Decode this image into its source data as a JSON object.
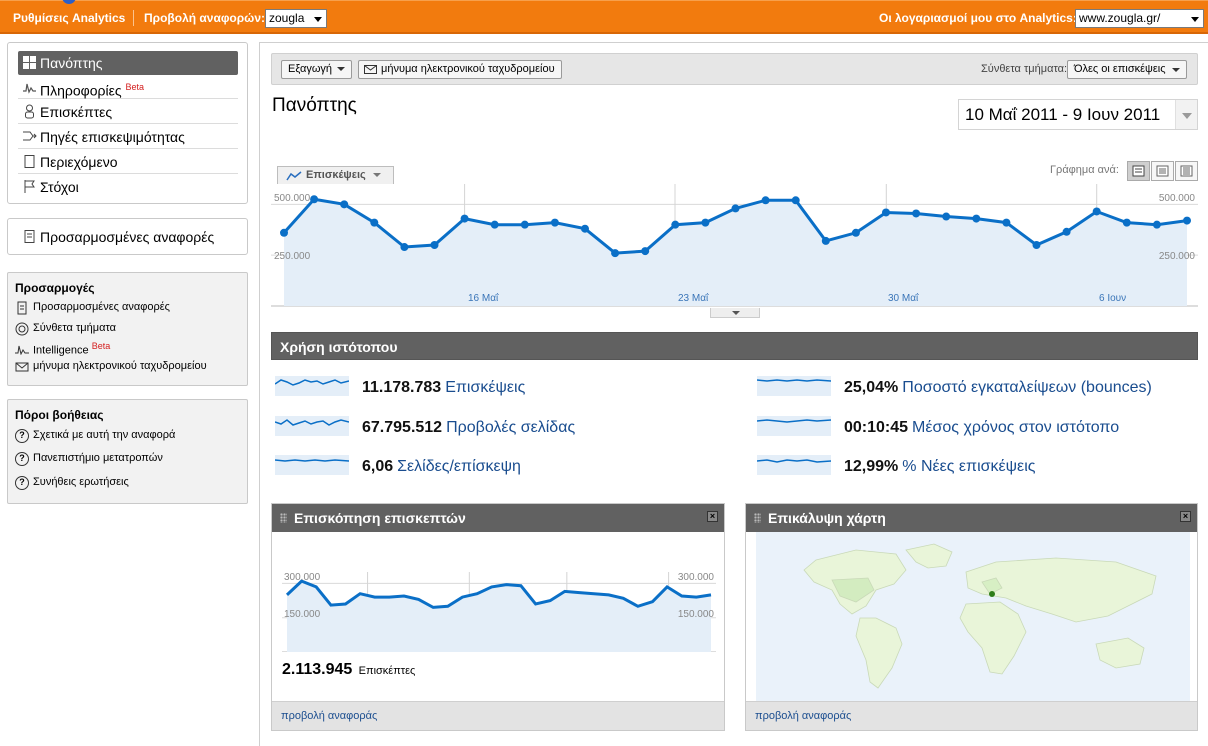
{
  "topbar": {
    "settings_link": "Ρυθμίσεις Analytics",
    "view_reports_label": "Προβολή αναφορών:",
    "profile_select": "zougla",
    "accounts_label": "Οι λογαριασμοί μου στο Analytics:",
    "account_select": "www.zougla.gr/"
  },
  "sidebar": {
    "nav": [
      {
        "label": "Πανόπτης",
        "icon": "dashboard-icon"
      },
      {
        "label": "Πληροφορίες",
        "badge": "Beta",
        "icon": "intelligence-icon"
      },
      {
        "label": "Επισκέπτες",
        "icon": "visitor-icon"
      },
      {
        "label": "Πηγές επισκεψιμότητας",
        "icon": "traffic-sources-icon"
      },
      {
        "label": "Περιεχόμενο",
        "icon": "content-icon"
      },
      {
        "label": "Στόχοι",
        "icon": "flag-icon"
      }
    ],
    "custom_reports": "Προσαρμοσμένες αναφορές",
    "customizations": {
      "title": "Προσαρμογές",
      "items": [
        {
          "label": "Προσαρμοσμένες αναφορές",
          "icon": "report-icon"
        },
        {
          "label": "Σύνθετα τμήματα",
          "icon": "segments-icon"
        },
        {
          "label": "Intelligence",
          "badge": "Beta",
          "icon": "intelligence-icon"
        },
        {
          "label": "μήνυμα ηλεκτρονικού ταχυδρομείου",
          "icon": "email-icon"
        }
      ]
    },
    "help": {
      "title": "Πόροι βοήθειας",
      "items": [
        {
          "label": "Σχετικά με αυτή την αναφορά",
          "icon": "help-icon"
        },
        {
          "label": "Πανεπιστήμιο μετατροπών",
          "icon": "help-icon"
        },
        {
          "label": "Συνήθεις ερωτήσεις",
          "icon": "help-icon"
        }
      ]
    }
  },
  "toolbar": {
    "export_label": "Εξαγωγή",
    "email_label": "μήνυμα ηλεκτρονικού ταχυδρομείου",
    "segments_label": "Σύνθετα τμήματα:",
    "segments_select": "Όλες οι επισκέψεις"
  },
  "page": {
    "title": "Πανόπτης",
    "date_range": "10 Μαΐ 2011 - 9 Ιουν 2011"
  },
  "main_graph": {
    "metric_tab": "Επισκέψεις",
    "graph_by_label": "Γράφημα ανά:",
    "y_ticks": [
      "500.000",
      "250.000"
    ],
    "x_ticks": [
      "16 Μαΐ",
      "23 Μαΐ",
      "30 Μαΐ",
      "6 Ιουν"
    ]
  },
  "site_usage": {
    "title": "Χρήση ιστότοπου",
    "stats": [
      {
        "value": "11.178.783",
        "label": "Επισκέψεις"
      },
      {
        "value": "67.795.512",
        "label": "Προβολές σελίδας"
      },
      {
        "value": "6,06",
        "label": "Σελίδες/επίσκεψη"
      },
      {
        "value": "25,04%",
        "label": "Ποσοστό εγκαταλείψεων (bounces)"
      },
      {
        "value": "00:10:45",
        "label": "Μέσος χρόνος στον ιστότοπο"
      },
      {
        "value": "12,99%",
        "label": "% Νέες επισκέψεις"
      }
    ]
  },
  "visitors_overview": {
    "title": "Επισκόπηση επισκεπτών",
    "y_ticks": [
      "300.000",
      "150.000"
    ],
    "total_value": "2.113.945",
    "total_label": "Επισκέπτες",
    "footer_link": "προβολή αναφοράς"
  },
  "map_overlay": {
    "title": "Επικάλυψη χάρτη",
    "footer_link": "προβολή αναφοράς"
  },
  "colors": {
    "topbar": "#f27b0e",
    "line": "#0a6fc7",
    "area": "#e6f0f8",
    "header": "#616161",
    "link": "#1a4d8f"
  },
  "chart_data": [
    {
      "type": "line",
      "title": "",
      "series": [
        {
          "name": "Επισκέψεις",
          "values": [
            360000,
            525000,
            500000,
            410000,
            290000,
            300000,
            430000,
            400000,
            400000,
            410000,
            380000,
            260000,
            270000,
            400000,
            410000,
            480000,
            520000,
            520000,
            320000,
            360000,
            460000,
            455000,
            440000,
            430000,
            410000,
            300000,
            365000,
            465000,
            410000,
            400000,
            420000
          ]
        }
      ],
      "ylim": [
        0,
        600000
      ],
      "y_ticks": [
        250000,
        500000
      ],
      "x_ticks": [
        "16 Μαΐ",
        "23 Μαΐ",
        "30 Μαΐ",
        "6 Ιουν"
      ]
    },
    {
      "type": "line",
      "title": "",
      "series": [
        {
          "name": "Επισκέπτες",
          "values": [
            250000,
            310000,
            285000,
            205000,
            210000,
            255000,
            240000,
            240000,
            245000,
            230000,
            195000,
            200000,
            240000,
            255000,
            285000,
            295000,
            290000,
            210000,
            225000,
            265000,
            260000,
            255000,
            250000,
            235000,
            200000,
            220000,
            285000,
            245000,
            240000,
            250000
          ]
        }
      ],
      "ylim": [
        0,
        350000
      ],
      "y_ticks": [
        150000,
        300000
      ]
    }
  ]
}
